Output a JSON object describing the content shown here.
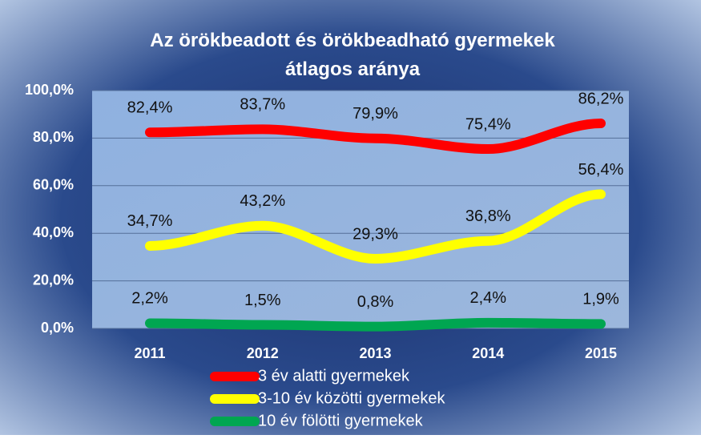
{
  "chart_data": {
    "type": "line",
    "title": "Az örökbeadott és örökbeadható gyermekek átlagos aránya",
    "categories": [
      "2011",
      "2012",
      "2013",
      "2014",
      "2015"
    ],
    "series": [
      {
        "name": "3 év alatti gyermekek",
        "color": "#ff0000",
        "values": [
          82.4,
          83.7,
          79.9,
          75.4,
          86.2
        ],
        "value_labels": [
          "82,4%",
          "83,7%",
          "79,9%",
          "75,4%",
          "86,2%"
        ]
      },
      {
        "name": "3-10 év közötti gyermekek",
        "color": "#ffff00",
        "values": [
          34.7,
          43.2,
          29.3,
          36.8,
          56.4
        ],
        "value_labels": [
          "34,7%",
          "43,2%",
          "29,3%",
          "36,8%",
          "56,4%"
        ]
      },
      {
        "name": "10 év fölötti gyermekek",
        "color": "#00a651",
        "values": [
          2.2,
          1.5,
          0.8,
          2.4,
          1.9
        ],
        "value_labels": [
          "2,2%",
          "1,5%",
          "0,8%",
          "2,4%",
          "1,9%"
        ]
      }
    ],
    "ylim": [
      0,
      100
    ],
    "yticks": [
      {
        "value": 0,
        "label": "0,0%"
      },
      {
        "value": 20,
        "label": "20,0%"
      },
      {
        "value": 40,
        "label": "40,0%"
      },
      {
        "value": 60,
        "label": "60,0%"
      },
      {
        "value": 80,
        "label": "80,0%"
      },
      {
        "value": 100,
        "label": "100,0%"
      }
    ],
    "grid": true
  }
}
